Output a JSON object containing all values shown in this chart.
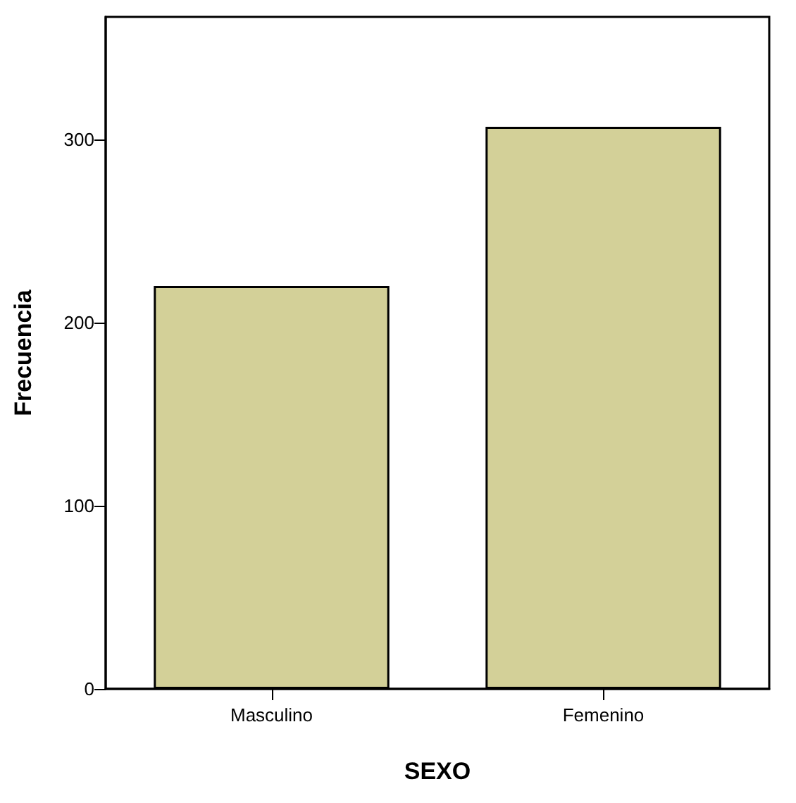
{
  "chart_data": {
    "type": "bar",
    "xlabel": "SEXO",
    "ylabel": "Frecuencia",
    "categories": [
      "Masculino",
      "Femenino"
    ],
    "values": [
      220,
      307
    ],
    "color": "#d3d098",
    "ylim": [
      0,
      367
    ],
    "yticks": [
      0,
      100,
      200,
      300
    ]
  }
}
